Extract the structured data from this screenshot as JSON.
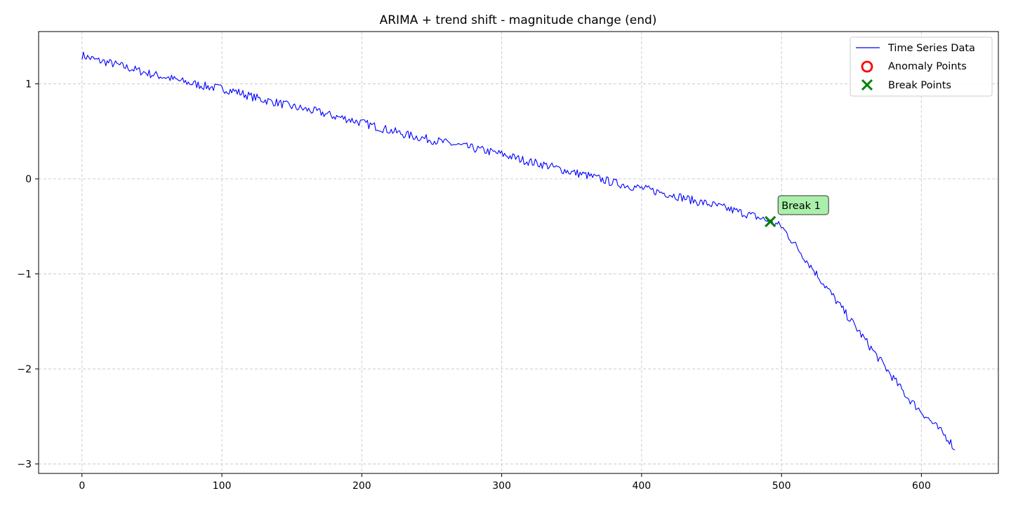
{
  "chart_data": {
    "type": "line",
    "title": "ARIMA + trend shift - magnitude change (end)",
    "xlabel": "",
    "ylabel": "",
    "xlim": [
      -31,
      655
    ],
    "ylim": [
      -3.1,
      1.55
    ],
    "xticks": [
      0,
      100,
      200,
      300,
      400,
      500,
      600
    ],
    "yticks": [
      1,
      0,
      -1,
      -2,
      -3
    ],
    "xtick_labels": [
      "0",
      "100",
      "200",
      "300",
      "400",
      "500",
      "600"
    ],
    "ytick_labels": [
      "1",
      "0",
      "−1",
      "−2",
      "−3"
    ],
    "grid": true,
    "legend_position": "top-right",
    "legend": [
      {
        "label": "Time Series Data",
        "marker": "line",
        "color": "#0000ff"
      },
      {
        "label": "Anomaly Points",
        "marker": "circle",
        "color": "#ff0000"
      },
      {
        "label": "Break Points",
        "marker": "x",
        "color": "#008000"
      }
    ],
    "series": [
      {
        "name": "Time Series Data",
        "color": "#0000ff",
        "x": [
          0,
          10,
          20,
          30,
          40,
          50,
          60,
          70,
          80,
          90,
          100,
          110,
          120,
          130,
          140,
          150,
          160,
          170,
          180,
          190,
          200,
          210,
          220,
          230,
          240,
          250,
          260,
          270,
          280,
          290,
          300,
          310,
          320,
          330,
          340,
          350,
          360,
          370,
          380,
          390,
          400,
          410,
          420,
          430,
          440,
          450,
          460,
          470,
          480,
          490,
          492,
          500,
          510,
          520,
          530,
          540,
          550,
          560,
          570,
          580,
          590,
          600,
          610,
          620,
          624
        ],
        "values": [
          1.3,
          1.25,
          1.22,
          1.18,
          1.14,
          1.1,
          1.07,
          1.03,
          1.0,
          0.97,
          0.95,
          0.92,
          0.87,
          0.83,
          0.8,
          0.76,
          0.73,
          0.7,
          0.66,
          0.63,
          0.59,
          0.55,
          0.51,
          0.47,
          0.44,
          0.41,
          0.38,
          0.35,
          0.32,
          0.29,
          0.26,
          0.22,
          0.18,
          0.15,
          0.11,
          0.07,
          0.04,
          0.0,
          -0.04,
          -0.07,
          -0.1,
          -0.13,
          -0.16,
          -0.2,
          -0.24,
          -0.27,
          -0.31,
          -0.35,
          -0.39,
          -0.44,
          -0.45,
          -0.5,
          -0.7,
          -0.9,
          -1.1,
          -1.3,
          -1.5,
          -1.7,
          -1.9,
          -2.1,
          -2.3,
          -2.45,
          -2.6,
          -2.75,
          -2.85
        ]
      }
    ],
    "anomaly_points": [],
    "break_points": [
      {
        "x": 492,
        "y": -0.45,
        "label": "Break 1"
      }
    ]
  }
}
